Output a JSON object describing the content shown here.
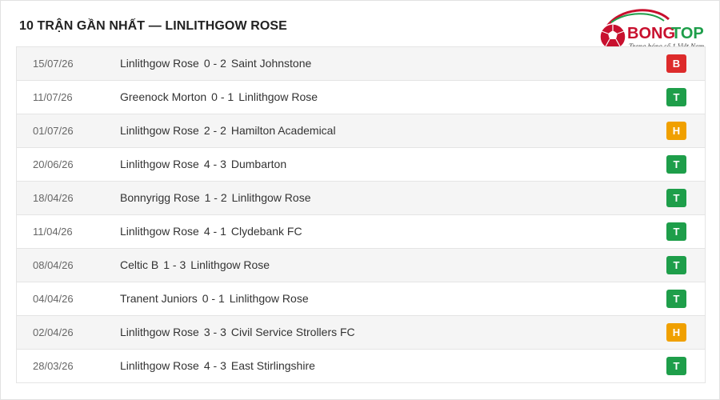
{
  "header": {
    "title": "10 TRẬN GẦN NHẤT — LINLITHGOW ROSE"
  },
  "logo": {
    "brand_a": "BONG",
    "brand_b": "TOP",
    "tagline": "Trang bóng số 1 Việt Nam"
  },
  "result_colors": {
    "B": "#dd2b2b",
    "T": "#1e9e4a",
    "H": "#f0a000"
  },
  "matches": [
    {
      "date": "15/07/26",
      "home": "Linlithgow Rose",
      "score": "0 - 2",
      "away": "Saint Johnstone",
      "result": "B"
    },
    {
      "date": "11/07/26",
      "home": "Greenock Morton",
      "score": "0 - 1",
      "away": "Linlithgow Rose",
      "result": "T"
    },
    {
      "date": "01/07/26",
      "home": "Linlithgow Rose",
      "score": "2 - 2",
      "away": "Hamilton Academical",
      "result": "H"
    },
    {
      "date": "20/06/26",
      "home": "Linlithgow Rose",
      "score": "4 - 3",
      "away": "Dumbarton",
      "result": "T"
    },
    {
      "date": "18/04/26",
      "home": "Bonnyrigg Rose",
      "score": "1 - 2",
      "away": "Linlithgow Rose",
      "result": "T"
    },
    {
      "date": "11/04/26",
      "home": "Linlithgow Rose",
      "score": "4 - 1",
      "away": "Clydebank FC",
      "result": "T"
    },
    {
      "date": "08/04/26",
      "home": "Celtic B",
      "score": "1 - 3",
      "away": "Linlithgow Rose",
      "result": "T"
    },
    {
      "date": "04/04/26",
      "home": "Tranent Juniors",
      "score": "0 - 1",
      "away": "Linlithgow Rose",
      "result": "T"
    },
    {
      "date": "02/04/26",
      "home": "Linlithgow Rose",
      "score": "3 - 3",
      "away": "Civil Service Strollers FC",
      "result": "H"
    },
    {
      "date": "28/03/26",
      "home": "Linlithgow Rose",
      "score": "4 - 3",
      "away": "East Stirlingshire",
      "result": "T"
    }
  ]
}
